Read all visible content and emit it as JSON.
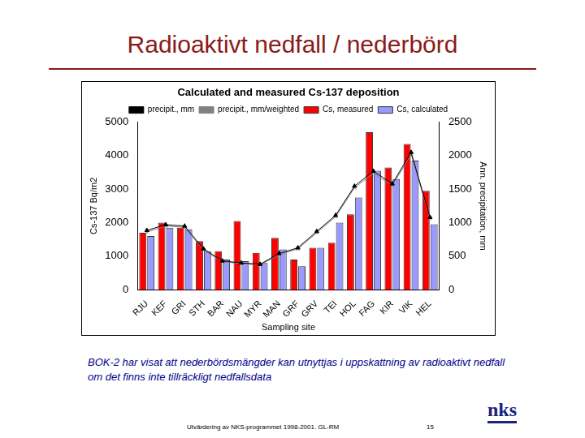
{
  "chart_data": {
    "type": "bar",
    "title": "Calculated and measured Cs-137 deposition",
    "x_label": "Sampling site",
    "y_label": "Cs-137 Bq/m2",
    "y2_label": "Ann. precipitation, mm",
    "categories": [
      "RJU",
      "KEF",
      "GRI",
      "STH",
      "BAR",
      "NAU",
      "MYR",
      "MAN",
      "GRF",
      "GRV",
      "TEI",
      "HOL",
      "FAG",
      "KIR",
      "VIK",
      "HEL"
    ],
    "series": [
      {
        "name": "Cs, measured",
        "type": "bar",
        "color": "#ff0000",
        "values": [
          1700,
          2000,
          1850,
          1450,
          1150,
          2050,
          1100,
          1550,
          900,
          1250,
          1400,
          2250,
          4700,
          3650,
          4350,
          2950
        ]
      },
      {
        "name": "Cs, calculated",
        "type": "bar",
        "color": "#9999ff",
        "values": [
          1600,
          1850,
          1800,
          1150,
          900,
          850,
          800,
          1200,
          700,
          1250,
          2000,
          2750,
          3550,
          3300,
          3850,
          1950
        ]
      },
      {
        "name": "precipit., mm",
        "type": "line",
        "axis": "y2",
        "color": "#000000",
        "marker": "triangle",
        "values": [
          885,
          970,
          950,
          610,
          430,
          400,
          380,
          540,
          625,
          870,
          1110,
          1545,
          1770,
          1580,
          2050,
          1080
        ]
      },
      {
        "name": "precipit., mm/weighted",
        "type": "line",
        "axis": "y2",
        "color": "#808080",
        "marker": "cross",
        "values": [
          860,
          950,
          930,
          590,
          420,
          390,
          370,
          520,
          610,
          850,
          1090,
          1520,
          1740,
          1550,
          2020,
          1060
        ]
      }
    ],
    "ylim": [
      0,
      5000
    ],
    "yticks": [
      0,
      1000,
      2000,
      3000,
      4000,
      5000
    ],
    "y2lim": [
      0,
      2500
    ],
    "y2ticks": [
      0,
      500,
      1000,
      1500,
      2000,
      2500
    ],
    "grid": false,
    "legend": "top"
  },
  "slide": {
    "title": "Radioaktivt nedfall / nederbörd",
    "caption": "BOK-2 har visat att nederbördsmängder kan utnyttjas i uppskattning av radioaktivt nedfall om det finns inte tillräckligt nedfallsdata",
    "footer": "Utvärdering av NKS-programmet 1998-2001. GL-RM",
    "page_number": "15",
    "logo": "nks"
  }
}
